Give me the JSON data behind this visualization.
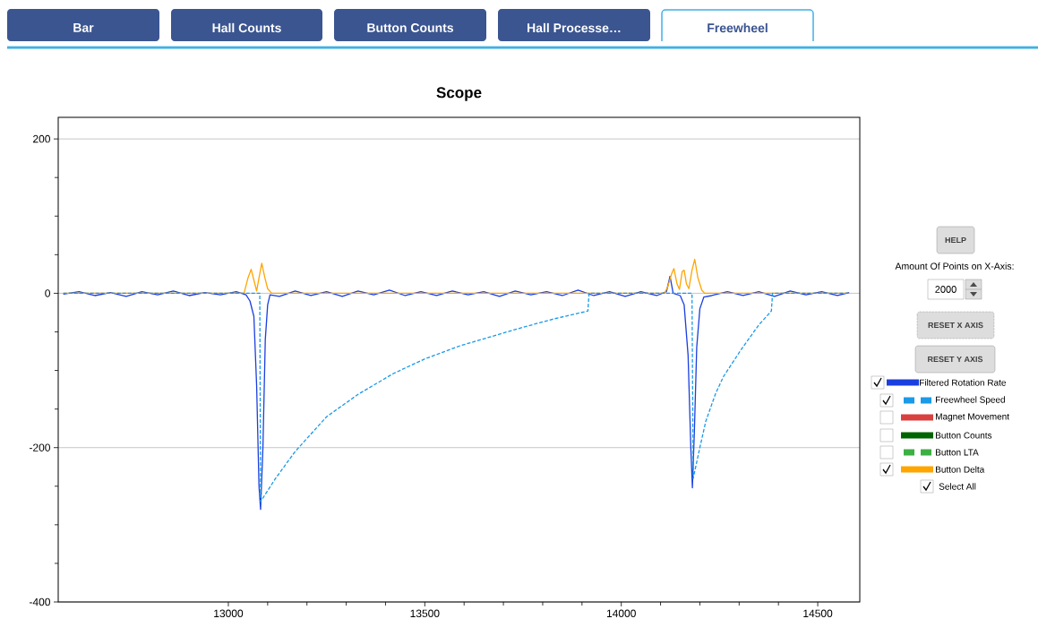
{
  "chart_data": {
    "type": "line",
    "title": "Scope",
    "xlim": [
      12567,
      14607
    ],
    "xticks": [
      13000,
      13500,
      14000,
      14500
    ],
    "ylim": [
      -400,
      228
    ],
    "yticks": [
      -400,
      -200,
      0,
      200
    ],
    "grid": "y",
    "legend": "right",
    "series": [
      {
        "name": "Filtered Rotation Rate",
        "color": "#1a3fe0",
        "x": [
          12580,
          12620,
          12660,
          12700,
          12740,
          12780,
          12820,
          12860,
          12900,
          12940,
          12980,
          13020,
          13045,
          13055,
          13065,
          13072,
          13078,
          13082,
          13088,
          13094,
          13100,
          13106,
          13130,
          13170,
          13210,
          13250,
          13290,
          13330,
          13370,
          13410,
          13450,
          13490,
          13530,
          13570,
          13610,
          13650,
          13690,
          13730,
          13770,
          13810,
          13850,
          13890,
          13930,
          13970,
          14010,
          14050,
          14090,
          14115,
          14124,
          14132,
          14150,
          14160,
          14170,
          14177,
          14181,
          14186,
          14192,
          14200,
          14210,
          14230,
          14270,
          14310,
          14350,
          14390,
          14430,
          14470,
          14510,
          14550,
          14580
        ],
        "values": [
          -1,
          2,
          -3,
          1,
          -4,
          2,
          -2,
          3,
          -3,
          1,
          -2,
          2,
          -2,
          -10,
          -30,
          -120,
          -250,
          -280,
          -200,
          -60,
          -15,
          -2,
          -4,
          3,
          -3,
          2,
          -4,
          3,
          -2,
          4,
          -3,
          2,
          -3,
          3,
          -2,
          2,
          -4,
          3,
          -2,
          2,
          -3,
          4,
          -3,
          2,
          -4,
          2,
          -3,
          2,
          22,
          0,
          -3,
          -15,
          -80,
          -200,
          -252,
          -180,
          -70,
          -20,
          -5,
          -3,
          2,
          -3,
          2,
          -4,
          3,
          -2,
          2,
          -3,
          1
        ]
      },
      {
        "name": "Freewheel Speed",
        "color": "#1a9ae8",
        "line_style": "dashed",
        "x": [
          12580,
          13080,
          13082,
          13120,
          13170,
          13250,
          13330,
          13420,
          13500,
          13590,
          13670,
          13750,
          13830,
          13915,
          13918,
          14180,
          14183,
          14200,
          14215,
          14240,
          14260,
          14305,
          14350,
          14382,
          14385,
          14580
        ],
        "values": [
          0,
          0,
          -270,
          -240,
          -205,
          -160,
          -131,
          -104,
          -85,
          -68,
          -56,
          -44,
          -33,
          -23,
          0,
          0,
          -240,
          -200,
          -166,
          -130,
          -108,
          -73,
          -41,
          -23,
          0,
          0
        ]
      },
      {
        "name": "Magnet Movement",
        "color": "#d94040"
      },
      {
        "name": "Button Counts",
        "color": "#006400"
      },
      {
        "name": "Button LTA",
        "color": "#3cb043",
        "line_style": "dashed"
      },
      {
        "name": "Button Delta",
        "color": "#ffa500",
        "x": [
          12580,
          13040,
          13050,
          13058,
          13066,
          13072,
          13078,
          13085,
          13093,
          13100,
          13110,
          14110,
          14118,
          14128,
          14134,
          14142,
          14148,
          14155,
          14160,
          14166,
          14172,
          14180,
          14187,
          14195,
          14205,
          14212,
          14580
        ],
        "values": [
          0,
          0,
          20,
          31,
          15,
          3,
          20,
          39,
          20,
          6,
          0,
          0,
          8,
          25,
          32,
          12,
          5,
          28,
          30,
          12,
          6,
          30,
          44,
          20,
          4,
          0,
          0
        ]
      }
    ],
    "annotations": [
      "Bar",
      "Hall Counts",
      "Button Counts",
      "Hall Processe…",
      "Freewheel",
      "HELP",
      "Amount Of Points on X-Axis:",
      "2000",
      "RESET X AXIS",
      "RESET Y AXIS",
      "Select All"
    ]
  }
}
